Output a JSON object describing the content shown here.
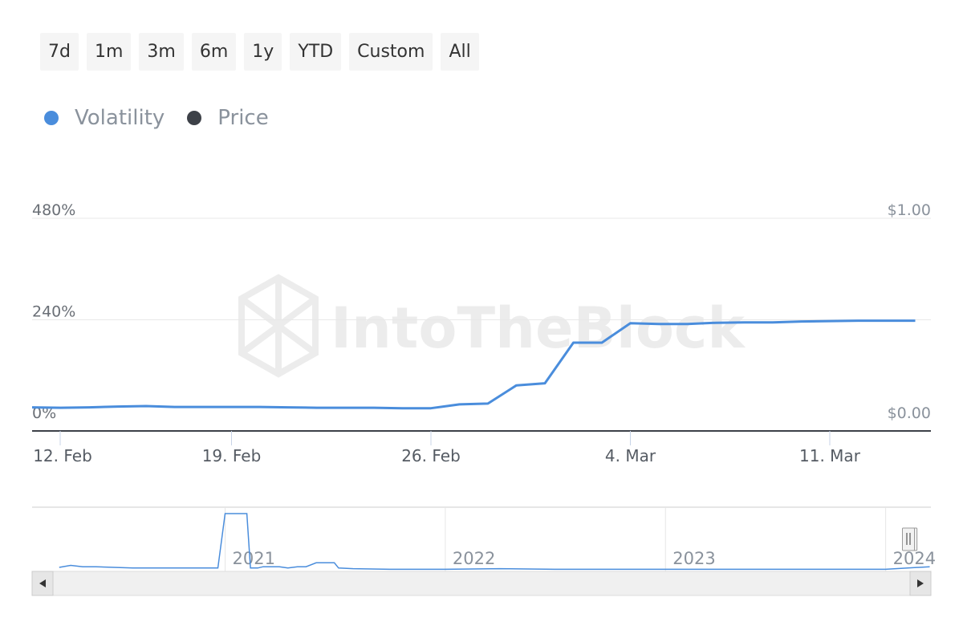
{
  "range_selector": {
    "buttons": [
      "7d",
      "1m",
      "3m",
      "6m",
      "1y",
      "YTD",
      "Custom",
      "All"
    ]
  },
  "legend": [
    {
      "label": "Volatility",
      "color": "#4a8ddc"
    },
    {
      "label": "Price",
      "color": "#3d4148"
    }
  ],
  "watermark": "IntoTheBlock",
  "colors": {
    "volatility": "#4a8ddc",
    "price": "#3d4148",
    "grid": "#e8e8e8",
    "navigator_mask": "#c9d3ea"
  },
  "chart_data": {
    "type": "line",
    "title": "",
    "x_start": "2024-02-12",
    "x_end": "2024-03-14",
    "x_ticks": [
      {
        "date": "2024-02-12",
        "label": "12. Feb"
      },
      {
        "date": "2024-02-19",
        "label": "19. Feb"
      },
      {
        "date": "2024-02-26",
        "label": "26. Feb"
      },
      {
        "date": "2024-03-04",
        "label": "4. Mar"
      },
      {
        "date": "2024-03-11",
        "label": "11. Mar"
      }
    ],
    "y_left": {
      "ticks": [
        "0%",
        "240%",
        "480%"
      ],
      "range": [
        0,
        480
      ]
    },
    "y_right": {
      "ticks": [
        "$0.00",
        "$1.00"
      ],
      "range": [
        0,
        1
      ]
    },
    "grid": true,
    "legend_position": "top-left",
    "series": [
      {
        "name": "Volatility",
        "axis": "left",
        "points": [
          [
            "2024-02-12",
            33
          ],
          [
            "2024-02-13",
            32
          ],
          [
            "2024-02-14",
            33
          ],
          [
            "2024-02-15",
            35
          ],
          [
            "2024-02-16",
            36
          ],
          [
            "2024-02-17",
            34
          ],
          [
            "2024-02-18",
            34
          ],
          [
            "2024-02-19",
            34
          ],
          [
            "2024-02-20",
            34
          ],
          [
            "2024-02-21",
            33
          ],
          [
            "2024-02-22",
            32
          ],
          [
            "2024-02-23",
            32
          ],
          [
            "2024-02-24",
            32
          ],
          [
            "2024-02-25",
            31
          ],
          [
            "2024-02-26",
            31
          ],
          [
            "2024-02-27",
            40
          ],
          [
            "2024-02-28",
            42
          ],
          [
            "2024-02-29",
            85
          ],
          [
            "2024-03-01",
            90
          ],
          [
            "2024-03-02",
            186
          ],
          [
            "2024-03-03",
            186
          ],
          [
            "2024-03-04",
            232
          ],
          [
            "2024-03-05",
            230
          ],
          [
            "2024-03-06",
            230
          ],
          [
            "2024-03-07",
            233
          ],
          [
            "2024-03-08",
            234
          ],
          [
            "2024-03-09",
            234
          ],
          [
            "2024-03-10",
            236
          ],
          [
            "2024-03-11",
            237
          ],
          [
            "2024-03-12",
            238
          ],
          [
            "2024-03-13",
            238
          ],
          [
            "2024-03-14",
            238
          ]
        ]
      }
    ]
  },
  "navigator": {
    "year_labels": [
      "2021",
      "2022",
      "2023",
      "2024"
    ],
    "overview_series": [
      [
        "2020-04-01",
        5
      ],
      [
        "2020-04-20",
        8
      ],
      [
        "2020-05-10",
        6
      ],
      [
        "2020-06-01",
        6
      ],
      [
        "2020-07-01",
        5
      ],
      [
        "2020-08-01",
        4
      ],
      [
        "2020-09-01",
        4
      ],
      [
        "2020-10-01",
        4
      ],
      [
        "2020-11-01",
        4
      ],
      [
        "2020-12-01",
        4
      ],
      [
        "2020-12-20",
        4
      ],
      [
        "2021-01-01",
        88
      ],
      [
        "2021-02-06",
        88
      ],
      [
        "2021-02-12",
        4
      ],
      [
        "2021-02-24",
        4
      ],
      [
        "2021-03-05",
        6
      ],
      [
        "2021-03-20",
        6
      ],
      [
        "2021-04-01",
        6
      ],
      [
        "2021-04-15",
        4
      ],
      [
        "2021-05-01",
        6
      ],
      [
        "2021-05-15",
        6
      ],
      [
        "2021-06-01",
        12
      ],
      [
        "2021-06-15",
        12
      ],
      [
        "2021-07-01",
        12
      ],
      [
        "2021-07-08",
        4
      ],
      [
        "2021-08-01",
        3
      ],
      [
        "2021-10-01",
        2
      ],
      [
        "2022-01-01",
        2
      ],
      [
        "2022-04-01",
        3
      ],
      [
        "2022-07-01",
        2
      ],
      [
        "2023-01-01",
        2
      ],
      [
        "2023-06-01",
        2
      ],
      [
        "2024-01-01",
        2
      ],
      [
        "2024-03-14",
        6
      ]
    ]
  }
}
